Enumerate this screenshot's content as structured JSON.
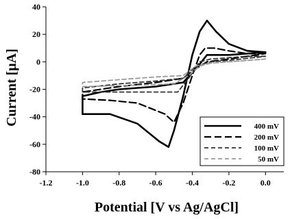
{
  "chart_data": {
    "type": "line",
    "xlabel": "Potential [V vs Ag/AgCl]",
    "ylabel": "Current [μA]",
    "xlim": [
      -1.2,
      0.1
    ],
    "ylim": [
      -80,
      40
    ],
    "x_ticks": [
      "-1.2",
      "-1.0",
      "-0.8",
      "-0.6",
      "-0.4",
      "-0.2",
      "0.0"
    ],
    "x_tick_values": [
      -1.2,
      -1.0,
      -0.8,
      -0.6,
      -0.4,
      -0.2,
      0.0
    ],
    "y_ticks": [
      "-80",
      "-60",
      "-40",
      "-20",
      "0",
      "20",
      "40"
    ],
    "y_tick_values": [
      -80,
      -60,
      -40,
      -20,
      0,
      20,
      40
    ],
    "grid": false,
    "legend_position": "bottom-right",
    "series": [
      {
        "name": "400 mV",
        "color": "#000000",
        "style": "solid",
        "points": [
          [
            0.0,
            7
          ],
          [
            -0.1,
            8
          ],
          [
            -0.2,
            13
          ],
          [
            -0.27,
            22
          ],
          [
            -0.32,
            30
          ],
          [
            -0.36,
            22
          ],
          [
            -0.4,
            5
          ],
          [
            -0.45,
            -25
          ],
          [
            -0.5,
            -50
          ],
          [
            -0.53,
            -62
          ],
          [
            -0.58,
            -58
          ],
          [
            -0.7,
            -45
          ],
          [
            -0.85,
            -38
          ],
          [
            -1.0,
            -38
          ],
          [
            -1.0,
            -25
          ],
          [
            -0.9,
            -22
          ],
          [
            -0.8,
            -20
          ],
          [
            -0.6,
            -18
          ],
          [
            -0.45,
            -15
          ],
          [
            -0.38,
            -5
          ],
          [
            -0.32,
            5
          ],
          [
            -0.2,
            5
          ],
          [
            -0.1,
            6
          ],
          [
            0.0,
            7
          ]
        ]
      },
      {
        "name": "200 mV",
        "color": "#000000",
        "style": "longdash",
        "points": [
          [
            0.0,
            6
          ],
          [
            -0.1,
            6
          ],
          [
            -0.2,
            8
          ],
          [
            -0.28,
            10
          ],
          [
            -0.33,
            10
          ],
          [
            -0.36,
            5
          ],
          [
            -0.4,
            -10
          ],
          [
            -0.45,
            -30
          ],
          [
            -0.5,
            -44
          ],
          [
            -0.55,
            -38
          ],
          [
            -0.7,
            -30
          ],
          [
            -0.85,
            -28
          ],
          [
            -1.0,
            -27
          ],
          [
            -1.0,
            -22
          ],
          [
            -0.8,
            -18
          ],
          [
            -0.6,
            -15
          ],
          [
            -0.45,
            -12
          ],
          [
            -0.38,
            -5
          ],
          [
            -0.32,
            0
          ],
          [
            -0.2,
            2
          ],
          [
            0.0,
            6
          ]
        ]
      },
      {
        "name": "100 mV",
        "color": "#333333",
        "style": "dash",
        "points": [
          [
            0.0,
            4
          ],
          [
            -0.1,
            4
          ],
          [
            -0.2,
            3
          ],
          [
            -0.3,
            2
          ],
          [
            -0.36,
            0
          ],
          [
            -0.42,
            -12
          ],
          [
            -0.48,
            -22
          ],
          [
            -0.6,
            -22
          ],
          [
            -0.8,
            -22
          ],
          [
            -1.0,
            -22
          ],
          [
            -1.0,
            -19
          ],
          [
            -0.8,
            -16
          ],
          [
            -0.6,
            -14
          ],
          [
            -0.45,
            -12
          ],
          [
            -0.38,
            -3
          ],
          [
            -0.3,
            0
          ],
          [
            -0.2,
            1
          ],
          [
            0.0,
            4
          ]
        ]
      },
      {
        "name": "50 mV",
        "color": "#999999",
        "style": "dash",
        "points": [
          [
            0.0,
            2
          ],
          [
            -0.1,
            1
          ],
          [
            -0.2,
            0
          ],
          [
            -0.3,
            -1
          ],
          [
            -0.36,
            -3
          ],
          [
            -0.42,
            -10
          ],
          [
            -0.5,
            -16
          ],
          [
            -0.7,
            -17
          ],
          [
            -1.0,
            -18
          ],
          [
            -1.0,
            -15
          ],
          [
            -0.8,
            -13
          ],
          [
            -0.6,
            -11
          ],
          [
            -0.45,
            -10
          ],
          [
            -0.38,
            -3
          ],
          [
            -0.3,
            -1
          ],
          [
            -0.2,
            0
          ],
          [
            0.0,
            2
          ]
        ]
      }
    ]
  }
}
